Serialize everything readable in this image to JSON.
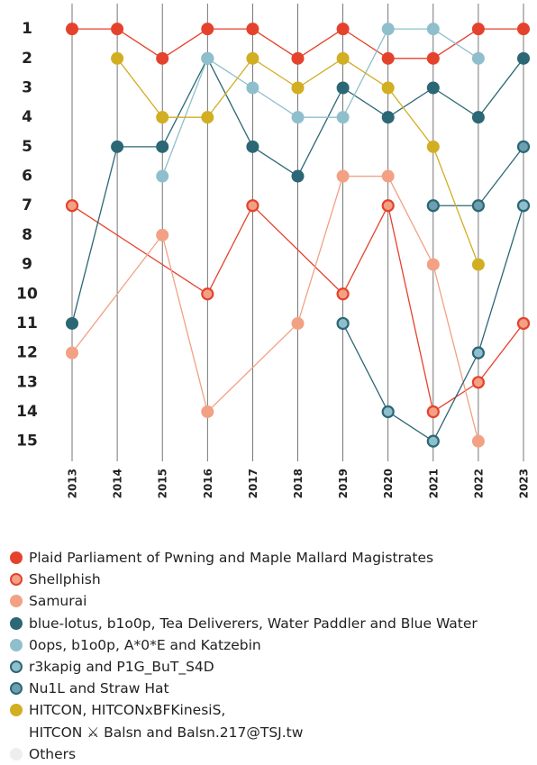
{
  "chart_data": {
    "type": "bump",
    "xlim": [
      2013,
      2023
    ],
    "xticks": [
      2013,
      2014,
      2015,
      2016,
      2017,
      2018,
      2019,
      2020,
      2021,
      2022,
      2023
    ],
    "ylim": [
      15.5,
      0.2
    ],
    "yticks": [
      1,
      2,
      3,
      4,
      5,
      6,
      7,
      8,
      9,
      10,
      11,
      12,
      13,
      14,
      15
    ],
    "grid": true,
    "series": [
      {
        "name": "Plaid Parliament of Pwning and Maple Mallard Magistrates",
        "color": "#e5422d",
        "x": [
          2013,
          2014,
          2015,
          2016,
          2017,
          2018,
          2019,
          2020,
          2021,
          2022,
          2023
        ],
        "values": [
          1,
          1,
          2,
          1,
          1,
          2,
          1,
          2,
          2,
          1,
          1
        ]
      },
      {
        "name": "Shellphish",
        "color": "#f2a184",
        "edge_color": "#e5422d",
        "x": [
          2013,
          2016,
          2017,
          2019,
          2020,
          2021,
          2022,
          2023
        ],
        "values": [
          7,
          10,
          7,
          10,
          7,
          14,
          13,
          11
        ]
      },
      {
        "name": "Samurai",
        "color": "#f2a184",
        "x": [
          2013,
          2015,
          2016,
          2018,
          2019,
          2020,
          2021,
          2022
        ],
        "values": [
          12,
          8,
          14,
          11,
          6,
          6,
          9,
          15
        ]
      },
      {
        "name": "blue-lotus, b1o0p, Tea Deliverers, Water Paddler and Blue Water",
        "color": "#2b6775",
        "x": [
          2013,
          2014,
          2015,
          2016,
          2017,
          2018,
          2019,
          2020,
          2021,
          2022,
          2023
        ],
        "values": [
          11,
          5,
          5,
          2,
          5,
          6,
          3,
          4,
          3,
          4,
          2
        ]
      },
      {
        "name": "0ops, b1o0p, A*0*E and Katzebin",
        "color": "#8fbfcc",
        "x": [
          2015,
          2016,
          2017,
          2018,
          2019,
          2020,
          2021,
          2022
        ],
        "values": [
          6,
          2,
          3,
          4,
          4,
          1,
          1,
          2
        ]
      },
      {
        "name": "r3kapig and P1G_BuT_S4D",
        "color": "#8fbfcc",
        "edge_color": "#2b6775",
        "x": [
          2019,
          2020,
          2021,
          2022,
          2023
        ],
        "values": [
          11,
          14,
          15,
          12,
          7
        ]
      },
      {
        "name": "Nu1L and Straw Hat",
        "color": "#6d9fb0",
        "edge_color": "#2b6775",
        "x": [
          2021,
          2022,
          2023
        ],
        "values": [
          7,
          7,
          5
        ]
      },
      {
        "name": "HITCON, HITCONxBFKinesiS,\nHITCON ⚔ Balsn and Balsn.217@TSJ.tw",
        "color": "#d2ae22",
        "x": [
          2014,
          2015,
          2016,
          2017,
          2018,
          2019,
          2020,
          2021,
          2022
        ],
        "values": [
          2,
          4,
          4,
          2,
          3,
          2,
          3,
          5,
          9
        ]
      },
      {
        "name": "Others",
        "color": "#eeeeee",
        "x": [],
        "values": []
      }
    ]
  }
}
